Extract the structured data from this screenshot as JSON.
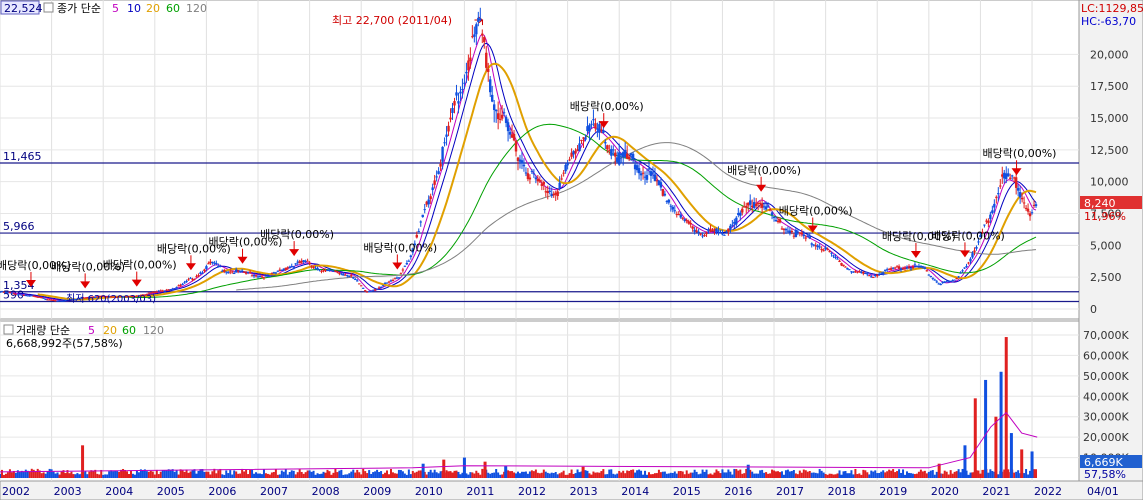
{
  "price_panel": {
    "header": {
      "code": "22,524",
      "ma_label": "종가 단순",
      "ma_periods": [
        "5",
        "10",
        "20",
        "60",
        "120"
      ],
      "ma_colors": [
        "#c000c0",
        "#0000c0",
        "#e0a000",
        "#00a000",
        "#808080"
      ]
    },
    "lc_label": "LC:1129,85",
    "hc_label": "HC:-63,70",
    "current_price_tag": "8,240",
    "change_pct_tag": "11,96%",
    "ref_lines": [
      {
        "label": "11,465",
        "value": 11465
      },
      {
        "label": "5,966",
        "value": 5966
      },
      {
        "label": "1,354",
        "value": 1354
      },
      {
        "label": "590",
        "value": 590
      }
    ],
    "high_annotation": "최고 22,700 (2011/04)",
    "low_annotation": "최저 620(2003/03)",
    "dividend_markers": [
      {
        "label": "배당락(0,00%)",
        "date": 2002.6
      },
      {
        "label": "배당락(0,00%)",
        "date": 2003.65
      },
      {
        "label": "배당락(0,00%)",
        "date": 2004.65
      },
      {
        "label": "배당락(0,00%)",
        "date": 2005.7
      },
      {
        "label": "배당락(0,00%)",
        "date": 2006.7
      },
      {
        "label": "배당락(0,00%)",
        "date": 2007.7
      },
      {
        "label": "배당락(0,00%)",
        "date": 2009.7
      },
      {
        "label": "배당락(0,00%)",
        "date": 2013.7
      },
      {
        "label": "배당락(0,00%)",
        "date": 2016.75
      },
      {
        "label": "배당락(0,00%)",
        "date": 2017.75
      },
      {
        "label": "배당락(0,00%)",
        "date": 2019.75
      },
      {
        "label": "배당락(0,00%)",
        "date": 2020.7
      },
      {
        "label": "배당락(0,00%)",
        "date": 2021.7
      }
    ]
  },
  "volume_panel": {
    "header": {
      "label": "거래량 단순",
      "ma_periods": [
        "5",
        "20",
        "60",
        "120"
      ],
      "ma_colors": [
        "#c000c0",
        "#e0a000",
        "#00a000",
        "#808080"
      ]
    },
    "volume_info": "6,668,992주(57,58%)",
    "current_volume_tag": "6,669K",
    "pct_tag": "57,58%"
  },
  "x_axis": {
    "labels": [
      "2002",
      "2003",
      "2004",
      "2005",
      "2006",
      "2007",
      "2008",
      "2009",
      "2010",
      "2011",
      "2012",
      "2013",
      "2014",
      "2015",
      "2016",
      "2017",
      "2018",
      "2019",
      "2020",
      "2021",
      "2022",
      "04/01"
    ]
  },
  "chart_data": [
    {
      "type": "line",
      "title": "",
      "y_axis_ticks": [
        "0",
        "2,500",
        "5,000",
        "7,500",
        "10,000",
        "12,500",
        "15,000",
        "17,500",
        "20,000"
      ],
      "ylim": [
        0,
        22700
      ],
      "xlim": [
        2002.0,
        2023.0
      ],
      "series": [
        {
          "values": [
            [
              2002.0,
              1350
            ],
            [
              2002.5,
              1100
            ],
            [
              2002.9,
              800
            ],
            [
              2003.2,
              620
            ],
            [
              2003.6,
              900
            ],
            [
              2004.0,
              1000
            ],
            [
              2004.5,
              950
            ],
            [
              2005.0,
              1300
            ],
            [
              2005.5,
              1800
            ],
            [
              2005.8,
              2600
            ],
            [
              2006.1,
              3600
            ],
            [
              2006.4,
              3000
            ],
            [
              2006.8,
              2800
            ],
            [
              2007.2,
              2500
            ],
            [
              2007.5,
              3200
            ],
            [
              2007.9,
              3700
            ],
            [
              2008.3,
              3000
            ],
            [
              2008.8,
              2700
            ],
            [
              2009.1,
              1300
            ],
            [
              2009.4,
              1800
            ],
            [
              2009.7,
              2400
            ],
            [
              2010.0,
              4500
            ],
            [
              2010.3,
              8500
            ],
            [
              2010.6,
              12500
            ],
            [
              2010.9,
              17000
            ],
            [
              2011.1,
              20000
            ],
            [
              2011.3,
              22300
            ],
            [
              2011.6,
              16000
            ],
            [
              2011.9,
              13500
            ],
            [
              2012.2,
              11000
            ],
            [
              2012.5,
              9500
            ],
            [
              2012.8,
              9300
            ],
            [
              2013.1,
              12000
            ],
            [
              2013.4,
              14500
            ],
            [
              2013.7,
              13500
            ],
            [
              2014.0,
              12000
            ],
            [
              2014.3,
              11500
            ],
            [
              2014.6,
              10500
            ],
            [
              2014.9,
              9000
            ],
            [
              2015.2,
              7000
            ],
            [
              2015.6,
              6000
            ],
            [
              2016.0,
              6000
            ],
            [
              2016.4,
              7500
            ],
            [
              2016.7,
              8800
            ],
            [
              2017.0,
              7000
            ],
            [
              2017.4,
              6000
            ],
            [
              2017.8,
              5200
            ],
            [
              2018.1,
              4300
            ],
            [
              2018.5,
              3000
            ],
            [
              2018.9,
              2600
            ],
            [
              2019.2,
              3000
            ],
            [
              2019.6,
              3400
            ],
            [
              2019.9,
              3200
            ],
            [
              2020.2,
              2000
            ],
            [
              2020.5,
              2200
            ],
            [
              2020.9,
              4500
            ],
            [
              2021.2,
              7500
            ],
            [
              2021.4,
              10300
            ],
            [
              2021.7,
              9800
            ],
            [
              2021.9,
              8200
            ],
            [
              2022.0,
              7400
            ],
            [
              2022.1,
              8240
            ]
          ]
        }
      ]
    },
    {
      "type": "bar",
      "title": "",
      "y_axis_ticks": [
        "10,000K",
        "20,000K",
        "30,000K",
        "40,000K",
        "50,000K",
        "60,000K",
        "70,000K"
      ],
      "ylim": [
        0,
        75000
      ],
      "xlim": [
        2002.0,
        2023.0
      ],
      "x": [
        2003.6,
        2010.2,
        2010.6,
        2011.0,
        2011.4,
        2011.8,
        2013.3,
        2016.5,
        2020.2,
        2020.7,
        2020.9,
        2021.1,
        2021.3,
        2021.4,
        2021.5,
        2021.6,
        2021.8,
        2022.0
      ],
      "values": [
        16000,
        7000,
        9000,
        10000,
        8000,
        6000,
        5500,
        6500,
        7000,
        16000,
        39000,
        48000,
        30000,
        52000,
        69000,
        22000,
        14000,
        13000
      ]
    }
  ]
}
